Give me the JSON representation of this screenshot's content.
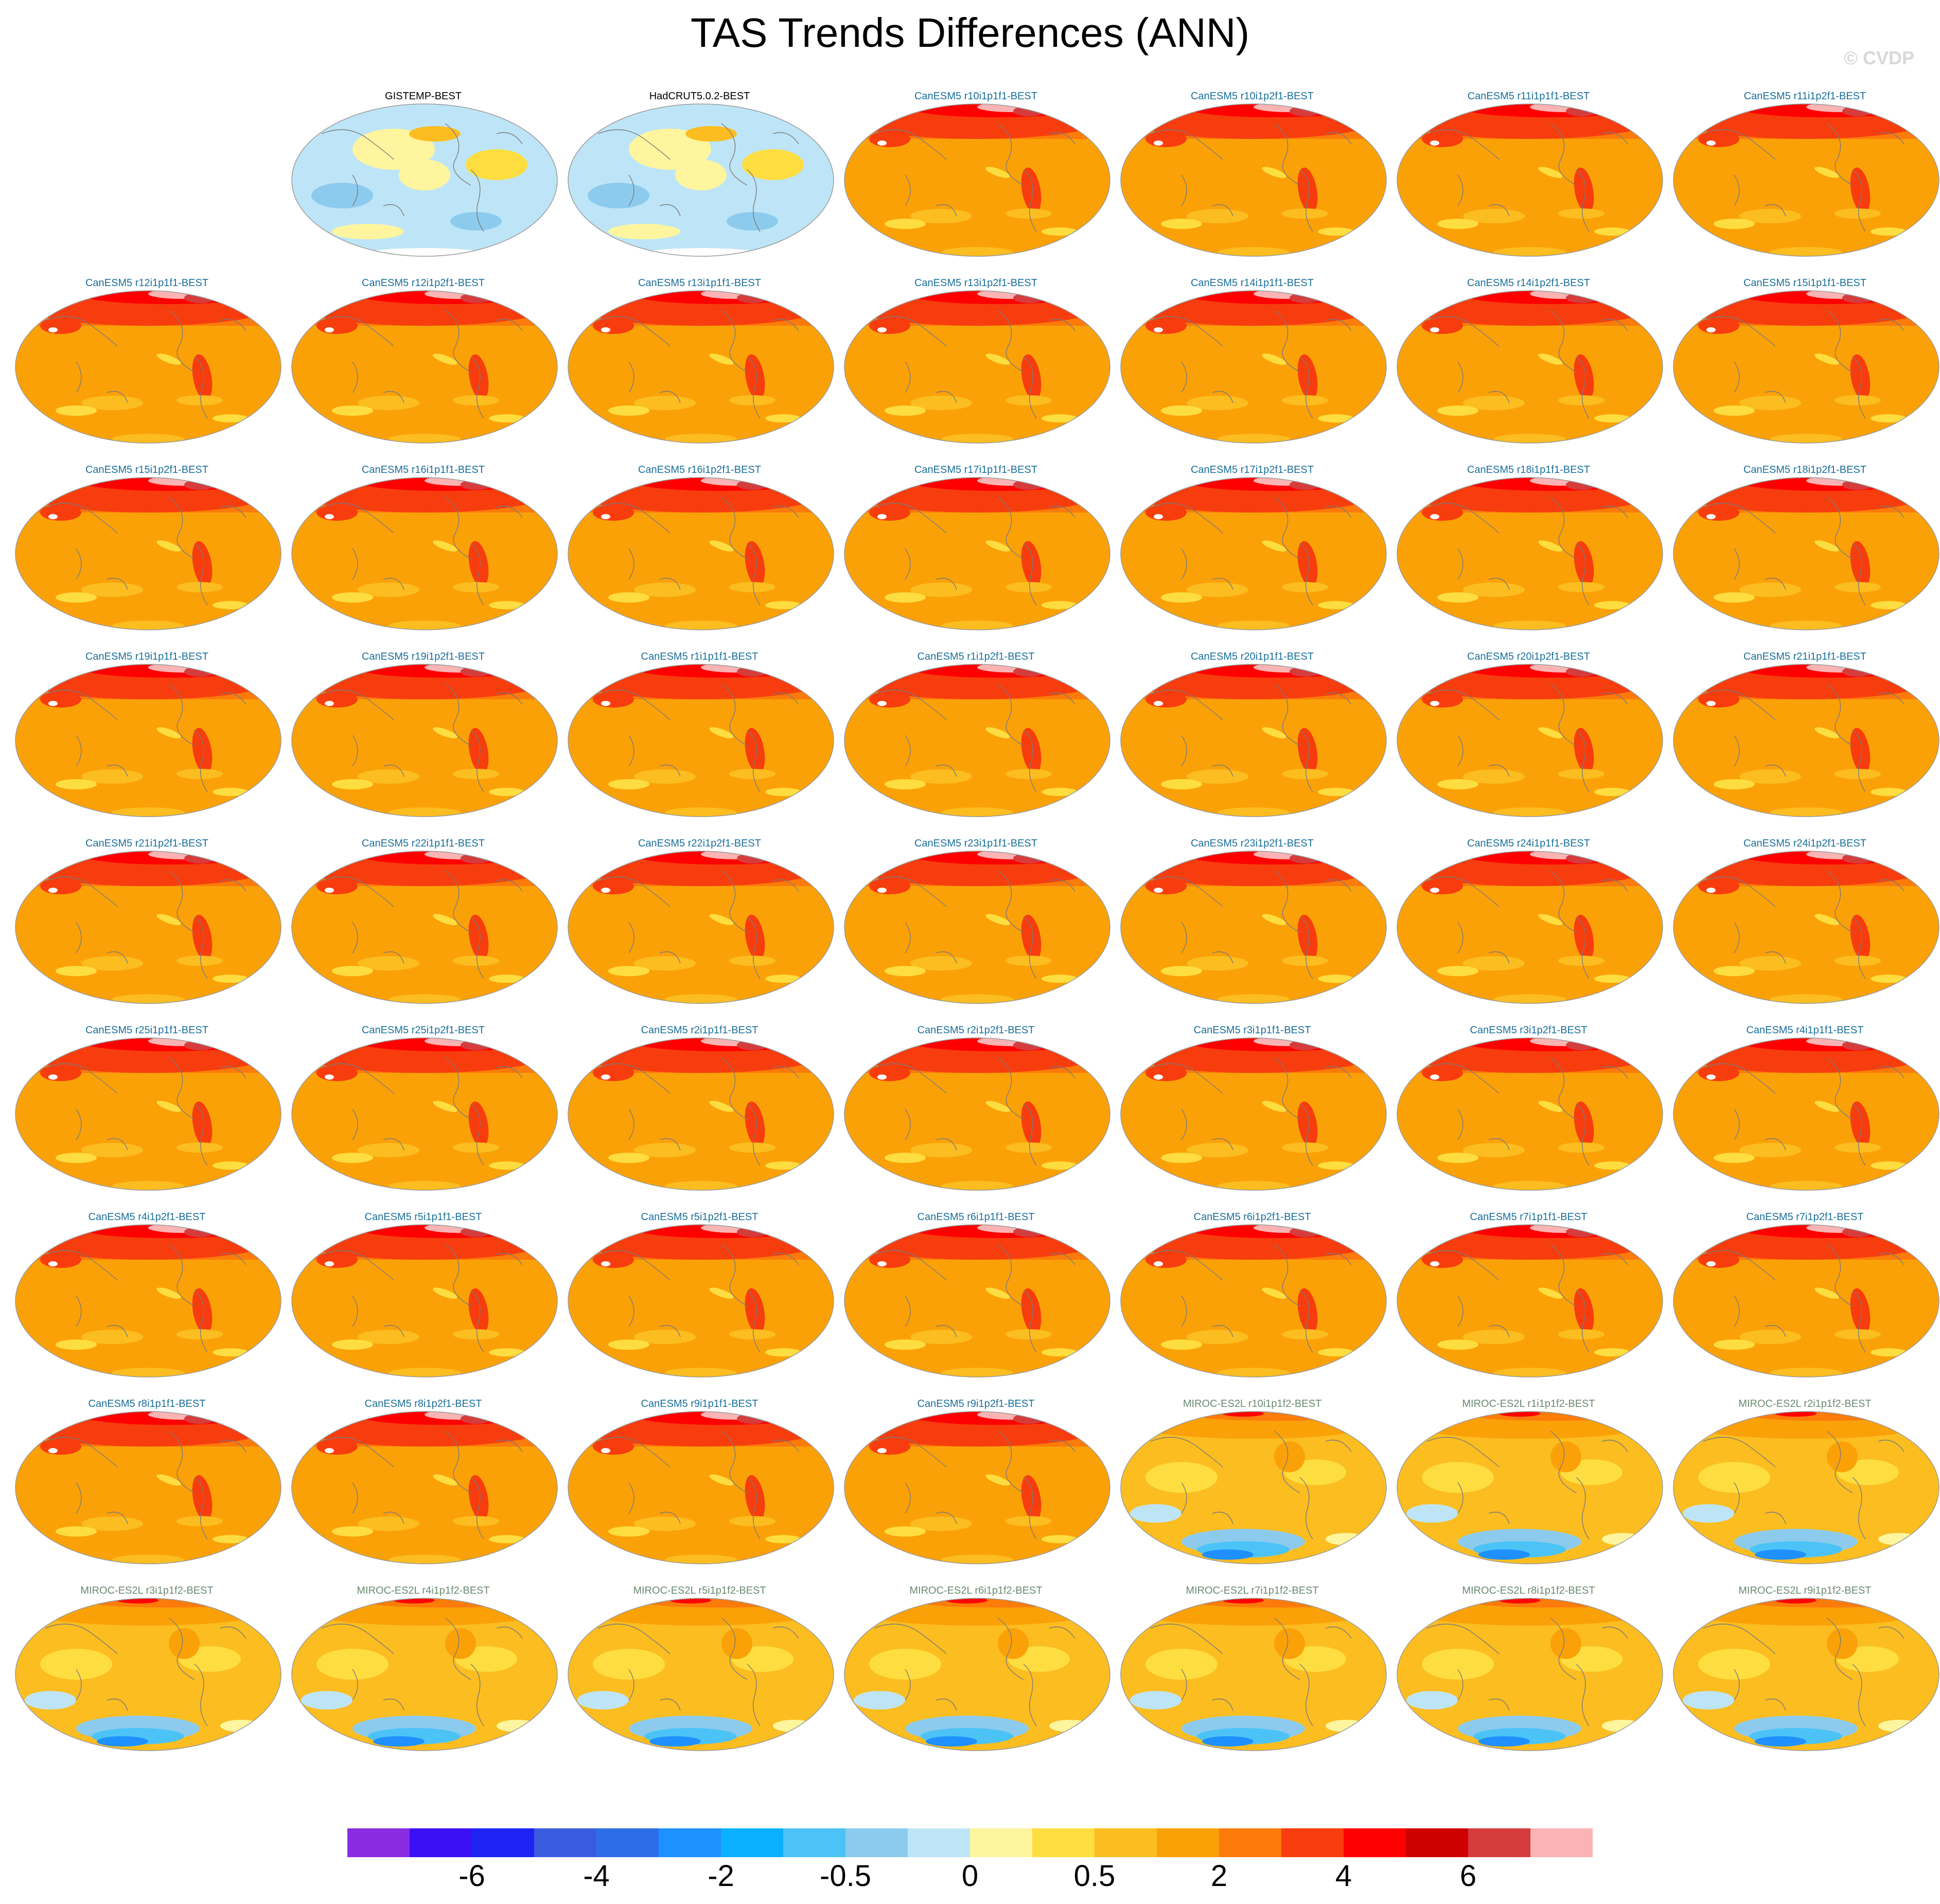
{
  "title": "TAS Trends Differences (ANN)",
  "watermark": "© CVDP",
  "colorbar": {
    "colors": [
      "#8a2be2",
      "#3b10f5",
      "#1c23f2",
      "#3a5be0",
      "#2d6ee8",
      "#1e90ff",
      "#0ab0ff",
      "#4cc3f6",
      "#8ccbed",
      "#bee5f7",
      "#fff59e",
      "#fedd40",
      "#fbbd20",
      "#fba108",
      "#fc7b0a",
      "#f73d0e",
      "#fe0000",
      "#ce0000",
      "#d63c3c",
      "#fcb3b3"
    ],
    "labels": [
      "-6",
      "-4",
      "-2",
      "-0.5",
      "0",
      "0.5",
      "2",
      "4",
      "6"
    ]
  },
  "panels": [
    {
      "label": "GISTEMP-BEST",
      "scheme": "obs",
      "color": "#000000"
    },
    {
      "label": "HadCRUT5.0.2-BEST",
      "scheme": "obs",
      "color": "#000000"
    },
    {
      "label": "CanESM5 r10i1p1f1-BEST",
      "scheme": "can",
      "color": "#1a6f9a"
    },
    {
      "label": "CanESM5 r10i1p2f1-BEST",
      "scheme": "can",
      "color": "#1a6f9a"
    },
    {
      "label": "CanESM5 r11i1p1f1-BEST",
      "scheme": "can",
      "color": "#1a6f9a"
    },
    {
      "label": "CanESM5 r11i1p2f1-BEST",
      "scheme": "can",
      "color": "#1a6f9a"
    },
    {
      "label": "CanESM5 r12i1p1f1-BEST",
      "scheme": "can",
      "color": "#1a6f9a"
    },
    {
      "label": "CanESM5 r12i1p2f1-BEST",
      "scheme": "can",
      "color": "#1a6f9a"
    },
    {
      "label": "CanESM5 r13i1p1f1-BEST",
      "scheme": "can",
      "color": "#1a6f9a"
    },
    {
      "label": "CanESM5 r13i1p2f1-BEST",
      "scheme": "can",
      "color": "#1a6f9a"
    },
    {
      "label": "CanESM5 r14i1p1f1-BEST",
      "scheme": "can",
      "color": "#1a6f9a"
    },
    {
      "label": "CanESM5 r14i1p2f1-BEST",
      "scheme": "can",
      "color": "#1a6f9a"
    },
    {
      "label": "CanESM5 r15i1p1f1-BEST",
      "scheme": "can",
      "color": "#1a6f9a"
    },
    {
      "label": "CanESM5 r15i1p2f1-BEST",
      "scheme": "can",
      "color": "#1a6f9a"
    },
    {
      "label": "CanESM5 r16i1p1f1-BEST",
      "scheme": "can",
      "color": "#1a6f9a"
    },
    {
      "label": "CanESM5 r16i1p2f1-BEST",
      "scheme": "can",
      "color": "#1a6f9a"
    },
    {
      "label": "CanESM5 r17i1p1f1-BEST",
      "scheme": "can",
      "color": "#1a6f9a"
    },
    {
      "label": "CanESM5 r17i1p2f1-BEST",
      "scheme": "can",
      "color": "#1a6f9a"
    },
    {
      "label": "CanESM5 r18i1p1f1-BEST",
      "scheme": "can",
      "color": "#1a6f9a"
    },
    {
      "label": "CanESM5 r18i1p2f1-BEST",
      "scheme": "can",
      "color": "#1a6f9a"
    },
    {
      "label": "CanESM5 r19i1p1f1-BEST",
      "scheme": "can",
      "color": "#1a6f9a"
    },
    {
      "label": "CanESM5 r19i1p2f1-BEST",
      "scheme": "can",
      "color": "#1a6f9a"
    },
    {
      "label": "CanESM5 r1i1p1f1-BEST",
      "scheme": "can",
      "color": "#1a6f9a"
    },
    {
      "label": "CanESM5 r1i1p2f1-BEST",
      "scheme": "can",
      "color": "#1a6f9a"
    },
    {
      "label": "CanESM5 r20i1p1f1-BEST",
      "scheme": "can",
      "color": "#1a6f9a"
    },
    {
      "label": "CanESM5 r20i1p2f1-BEST",
      "scheme": "can",
      "color": "#1a6f9a"
    },
    {
      "label": "CanESM5 r21i1p1f1-BEST",
      "scheme": "can",
      "color": "#1a6f9a"
    },
    {
      "label": "CanESM5 r21i1p2f1-BEST",
      "scheme": "can",
      "color": "#1a6f9a"
    },
    {
      "label": "CanESM5 r22i1p1f1-BEST",
      "scheme": "can",
      "color": "#1a6f9a"
    },
    {
      "label": "CanESM5 r22i1p2f1-BEST",
      "scheme": "can",
      "color": "#1a6f9a"
    },
    {
      "label": "CanESM5 r23i1p1f1-BEST",
      "scheme": "can",
      "color": "#1a6f9a"
    },
    {
      "label": "CanESM5 r23i1p2f1-BEST",
      "scheme": "can",
      "color": "#1a6f9a"
    },
    {
      "label": "CanESM5 r24i1p1f1-BEST",
      "scheme": "can",
      "color": "#1a6f9a"
    },
    {
      "label": "CanESM5 r24i1p2f1-BEST",
      "scheme": "can",
      "color": "#1a6f9a"
    },
    {
      "label": "CanESM5 r25i1p1f1-BEST",
      "scheme": "can",
      "color": "#1a6f9a"
    },
    {
      "label": "CanESM5 r25i1p2f1-BEST",
      "scheme": "can",
      "color": "#1a6f9a"
    },
    {
      "label": "CanESM5 r2i1p1f1-BEST",
      "scheme": "can",
      "color": "#1a6f9a"
    },
    {
      "label": "CanESM5 r2i1p2f1-BEST",
      "scheme": "can",
      "color": "#1a6f9a"
    },
    {
      "label": "CanESM5 r3i1p1f1-BEST",
      "scheme": "can",
      "color": "#1a6f9a"
    },
    {
      "label": "CanESM5 r3i1p2f1-BEST",
      "scheme": "can",
      "color": "#1a6f9a"
    },
    {
      "label": "CanESM5 r4i1p1f1-BEST",
      "scheme": "can",
      "color": "#1a6f9a"
    },
    {
      "label": "CanESM5 r4i1p2f1-BEST",
      "scheme": "can",
      "color": "#1a6f9a"
    },
    {
      "label": "CanESM5 r5i1p1f1-BEST",
      "scheme": "can",
      "color": "#1a6f9a"
    },
    {
      "label": "CanESM5 r5i1p2f1-BEST",
      "scheme": "can",
      "color": "#1a6f9a"
    },
    {
      "label": "CanESM5 r6i1p1f1-BEST",
      "scheme": "can",
      "color": "#1a6f9a"
    },
    {
      "label": "CanESM5 r6i1p2f1-BEST",
      "scheme": "can",
      "color": "#1a6f9a"
    },
    {
      "label": "CanESM5 r7i1p1f1-BEST",
      "scheme": "can",
      "color": "#1a6f9a"
    },
    {
      "label": "CanESM5 r7i1p2f1-BEST",
      "scheme": "can",
      "color": "#1a6f9a"
    },
    {
      "label": "CanESM5 r8i1p1f1-BEST",
      "scheme": "can",
      "color": "#1a6f9a"
    },
    {
      "label": "CanESM5 r8i1p2f1-BEST",
      "scheme": "can",
      "color": "#1a6f9a"
    },
    {
      "label": "CanESM5 r9i1p1f1-BEST",
      "scheme": "can",
      "color": "#1a6f9a"
    },
    {
      "label": "CanESM5 r9i1p2f1-BEST",
      "scheme": "can",
      "color": "#1a6f9a"
    },
    {
      "label": "MIROC-ES2L r10i1p1f2-BEST",
      "scheme": "miroc",
      "color": "#6a8a70"
    },
    {
      "label": "MIROC-ES2L r1i1p1f2-BEST",
      "scheme": "miroc",
      "color": "#6a8a70"
    },
    {
      "label": "MIROC-ES2L r2i1p1f2-BEST",
      "scheme": "miroc",
      "color": "#6a8a70"
    },
    {
      "label": "MIROC-ES2L r3i1p1f2-BEST",
      "scheme": "miroc",
      "color": "#6a8a70"
    },
    {
      "label": "MIROC-ES2L r4i1p1f2-BEST",
      "scheme": "miroc",
      "color": "#6a8a70"
    },
    {
      "label": "MIROC-ES2L r5i1p1f2-BEST",
      "scheme": "miroc",
      "color": "#6a8a70"
    },
    {
      "label": "MIROC-ES2L r6i1p1f2-BEST",
      "scheme": "miroc",
      "color": "#6a8a70"
    },
    {
      "label": "MIROC-ES2L r7i1p1f2-BEST",
      "scheme": "miroc",
      "color": "#6a8a70"
    },
    {
      "label": "MIROC-ES2L r8i1p1f2-BEST",
      "scheme": "miroc",
      "color": "#6a8a70"
    },
    {
      "label": "MIROC-ES2L r9i1p1f2-BEST",
      "scheme": "miroc",
      "color": "#6a8a70"
    }
  ]
}
